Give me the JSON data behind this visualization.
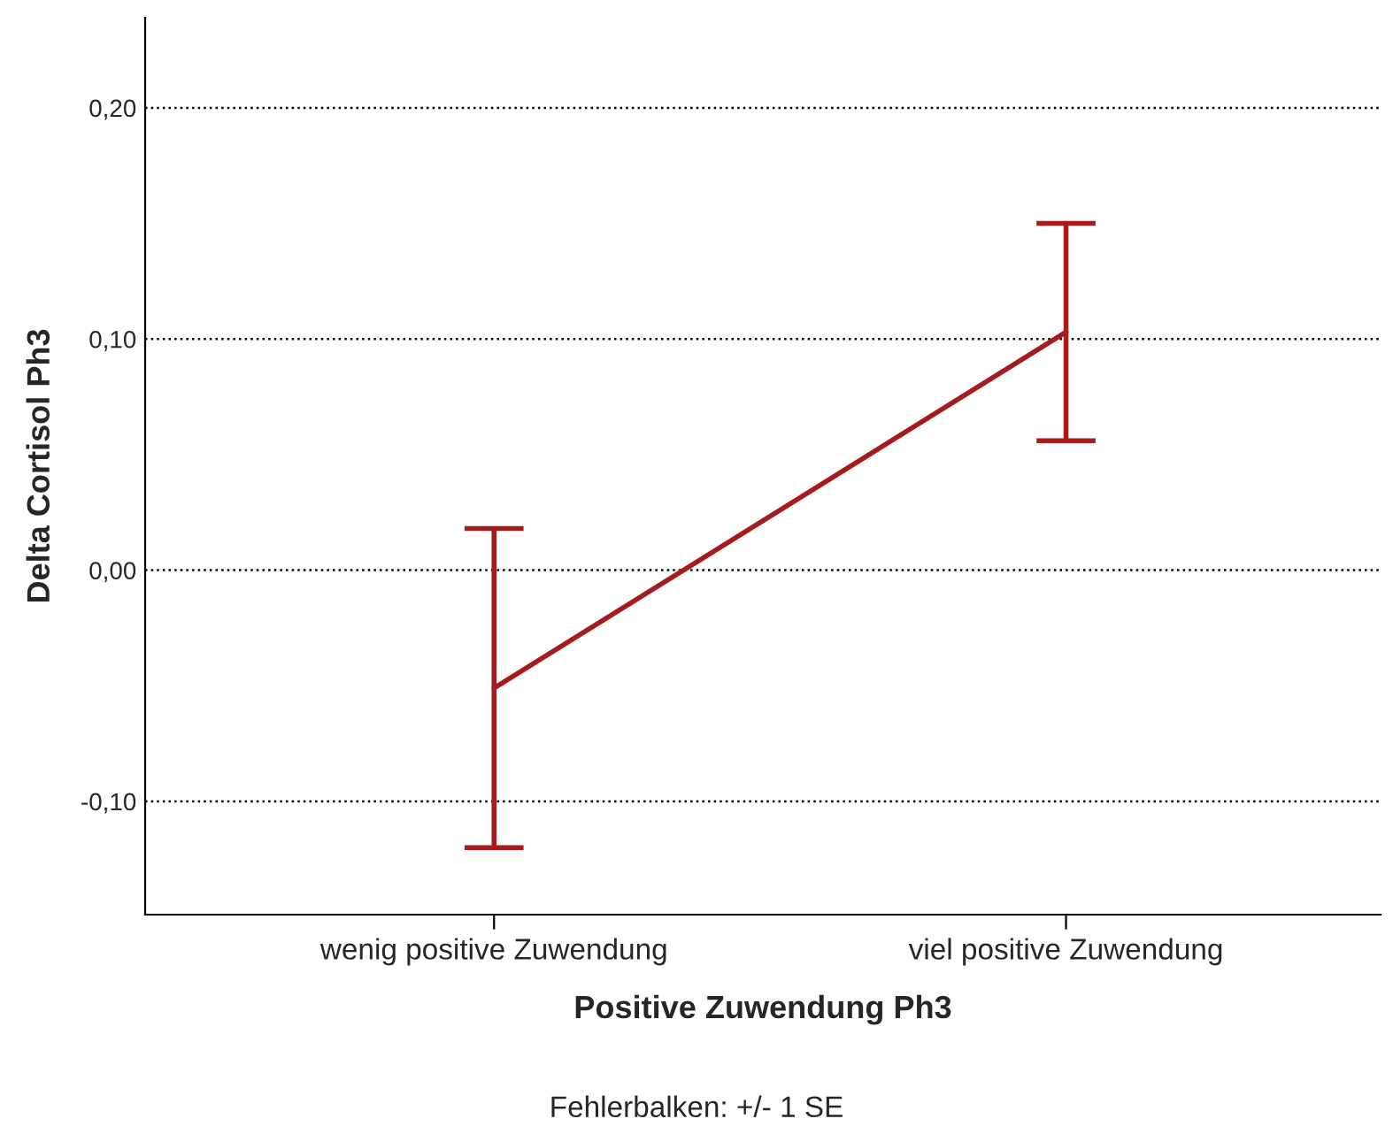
{
  "chart_data": {
    "type": "line",
    "xlabel": "Positive Zuwendung Ph3",
    "ylabel": "Delta Cortisol Ph3",
    "categories": [
      "wenig positive Zuwendung",
      "viel positive Zuwendung"
    ],
    "series": [
      {
        "color": "#a61c1c",
        "values": [
          -0.051,
          0.103
        ],
        "errors": [
          0.069,
          0.047
        ]
      }
    ],
    "ylim": [
      -0.149,
      0.239
    ],
    "yticks": [
      {
        "value": -0.1,
        "label": "-0,10"
      },
      {
        "value": 0.0,
        "label": "0,00"
      },
      {
        "value": 0.1,
        "label": "0,10"
      },
      {
        "value": 0.2,
        "label": "0,20"
      }
    ],
    "grid": "y",
    "marker": "none",
    "line_style": "solid",
    "legend": false,
    "annotations": [
      "Fehlerbalken: +/- 1 SE"
    ]
  }
}
